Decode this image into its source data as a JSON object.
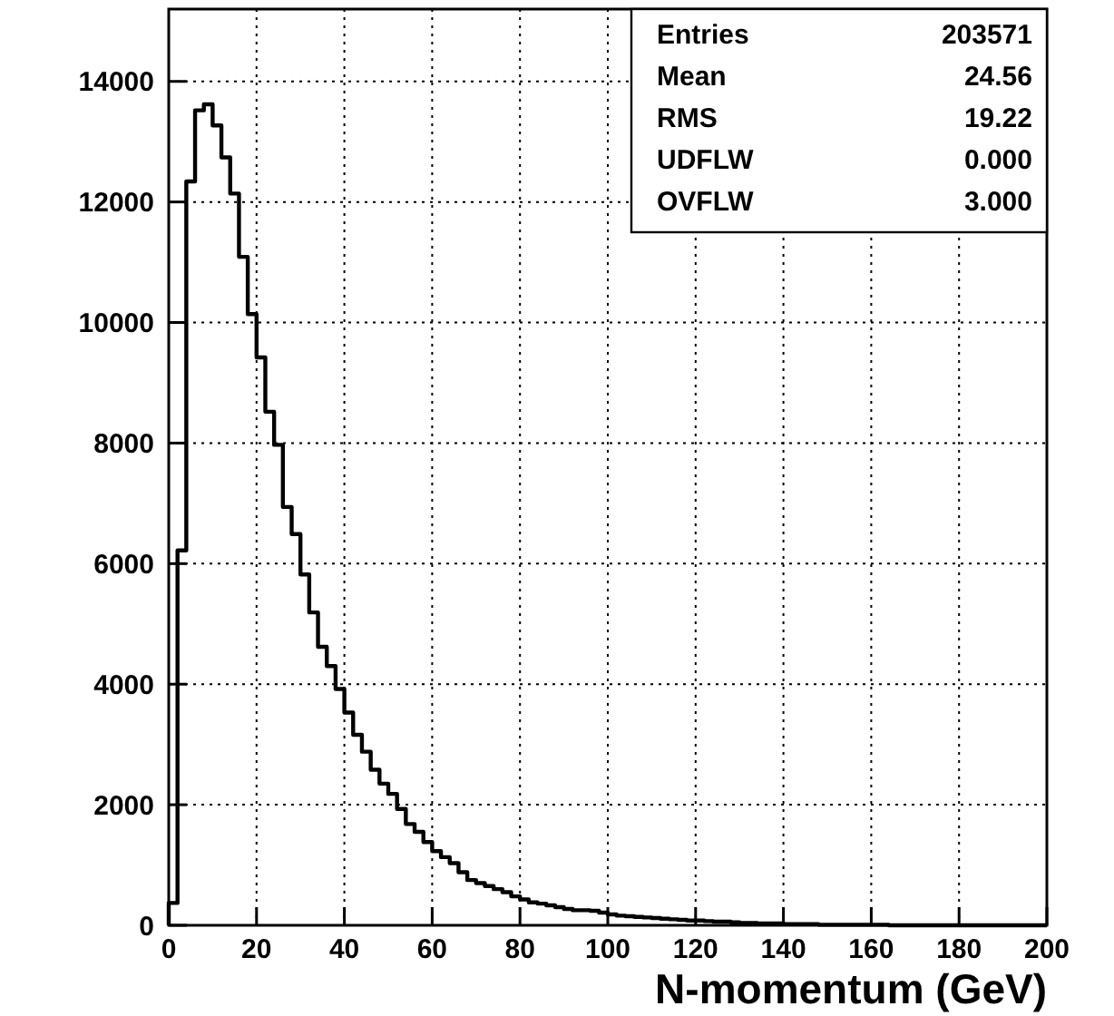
{
  "chart_data": {
    "type": "histogram",
    "xlabel": "N-momentum (GeV)",
    "bins": [
      0,
      2,
      4,
      6,
      8,
      10,
      12,
      14,
      16,
      18,
      20,
      22,
      24,
      26,
      28,
      30,
      32,
      34,
      36,
      38,
      40,
      42,
      44,
      46,
      48,
      50,
      52,
      54,
      56,
      58,
      60,
      62,
      64,
      66,
      68,
      70,
      72,
      74,
      76,
      78,
      80,
      82,
      84,
      86,
      88,
      90,
      92,
      94,
      96,
      98,
      100,
      102,
      104,
      106,
      108,
      110,
      112,
      114,
      116,
      118,
      120,
      122,
      124,
      126,
      128,
      130,
      132,
      134,
      136,
      138,
      140,
      142,
      144,
      146,
      148,
      150,
      152,
      154,
      156,
      158,
      160,
      162,
      164,
      166,
      168,
      170,
      172,
      174,
      176,
      178,
      180,
      182,
      184,
      186,
      188,
      190,
      192,
      194,
      196,
      198,
      200
    ],
    "values": [
      370,
      6220,
      12340,
      13520,
      13620,
      13270,
      12740,
      12140,
      11090,
      10140,
      9420,
      8520,
      7970,
      6940,
      6490,
      5820,
      5190,
      4620,
      4300,
      3920,
      3530,
      3160,
      2880,
      2580,
      2350,
      2180,
      1930,
      1680,
      1550,
      1380,
      1230,
      1130,
      1030,
      880,
      750,
      700,
      650,
      600,
      550,
      480,
      430,
      380,
      360,
      330,
      300,
      270,
      250,
      250,
      240,
      210,
      180,
      160,
      150,
      140,
      130,
      120,
      110,
      100,
      90,
      80,
      80,
      70,
      60,
      60,
      50,
      40,
      40,
      30,
      30,
      30,
      20,
      20,
      20,
      20,
      10,
      10,
      10,
      10,
      10,
      10,
      10,
      10,
      0,
      0,
      0,
      0,
      0,
      0,
      0,
      0,
      0,
      0,
      0,
      0,
      0,
      0,
      0,
      0,
      0,
      0
    ],
    "color": "#000000",
    "xlim": [
      0,
      200
    ],
    "xticks": [
      0,
      20,
      40,
      60,
      80,
      100,
      120,
      140,
      160,
      180,
      200
    ],
    "ylim": [
      0,
      15200
    ],
    "yticks": [
      0,
      2000,
      4000,
      6000,
      8000,
      10000,
      12000,
      14000
    ],
    "grid": true,
    "annotations": [
      "Entries",
      "203571",
      "Mean",
      "24.56",
      "RMS",
      "19.22",
      "UDFLW",
      "0.000",
      "OVFLW",
      "3.000"
    ]
  }
}
